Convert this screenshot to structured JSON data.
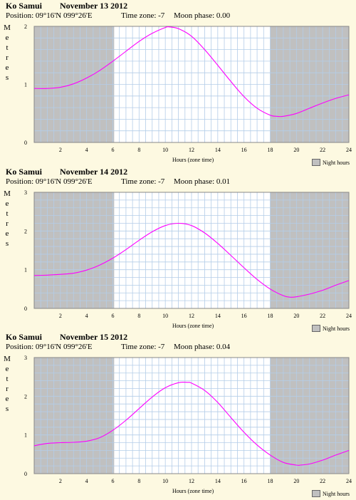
{
  "panels": [
    {
      "location": "Ko Samui",
      "date": "November 13 2012",
      "position": "Position: 09°16'N 099°26'E",
      "timezone": "Time zone: -7",
      "moon": "Moon phase: 0.00",
      "chart_data": {
        "type": "line",
        "ylabel": "Metres",
        "xlabel": "Hours (zone time)",
        "ylim": [
          0,
          2
        ],
        "yticks": [
          0,
          1,
          2
        ],
        "xlim": [
          0,
          24
        ],
        "xticks": [
          2,
          4,
          6,
          8,
          10,
          12,
          14,
          16,
          18,
          20,
          22,
          24
        ],
        "night": [
          [
            0,
            6.1
          ],
          [
            18,
            24
          ]
        ],
        "legend": "Night hours",
        "line_color": "#ff00ff",
        "x": [
          0,
          1,
          2,
          3,
          4,
          5,
          6,
          7,
          8,
          9,
          10,
          10.3,
          11,
          12,
          13,
          14,
          15,
          16,
          17,
          18,
          18.5,
          19,
          20,
          21,
          22,
          23,
          24
        ],
        "y": [
          0.93,
          0.93,
          0.95,
          1.01,
          1.11,
          1.24,
          1.4,
          1.57,
          1.74,
          1.88,
          1.98,
          1.99,
          1.96,
          1.83,
          1.6,
          1.33,
          1.05,
          0.79,
          0.59,
          0.47,
          0.45,
          0.45,
          0.5,
          0.59,
          0.68,
          0.76,
          0.82
        ]
      }
    },
    {
      "location": "Ko Samui",
      "date": "November 14 2012",
      "position": "Position: 09°16'N 099°26'E",
      "timezone": "Time zone: -7",
      "moon": "Moon phase: 0.01",
      "chart_data": {
        "type": "line",
        "ylabel": "Metres",
        "xlabel": "Hours (zone time)",
        "ylim": [
          0,
          3
        ],
        "yticks": [
          0,
          1,
          2,
          3
        ],
        "xlim": [
          0,
          24
        ],
        "xticks": [
          2,
          4,
          6,
          8,
          10,
          12,
          14,
          16,
          18,
          20,
          22,
          24
        ],
        "night": [
          [
            0,
            6.1
          ],
          [
            18,
            24
          ]
        ],
        "legend": "Night hours",
        "line_color": "#ff00ff",
        "x": [
          0,
          1,
          2,
          3,
          4,
          5,
          6,
          7,
          8,
          9,
          10,
          11,
          12,
          13,
          14,
          15,
          16,
          17,
          18,
          19,
          19.5,
          20,
          21,
          22,
          23,
          24
        ],
        "y": [
          0.85,
          0.86,
          0.88,
          0.91,
          0.99,
          1.12,
          1.3,
          1.52,
          1.76,
          1.98,
          2.14,
          2.2,
          2.14,
          1.95,
          1.68,
          1.37,
          1.05,
          0.75,
          0.5,
          0.33,
          0.29,
          0.3,
          0.37,
          0.47,
          0.6,
          0.72
        ]
      }
    },
    {
      "location": "Ko Samui",
      "date": "November 15 2012",
      "position": "Position: 09°16'N 099°26'E",
      "timezone": "Time zone: -7",
      "moon": "Moon phase: 0.04",
      "chart_data": {
        "type": "line",
        "ylabel": "Metres",
        "xlabel": "Hours (zone time)",
        "ylim": [
          0,
          3
        ],
        "yticks": [
          0,
          1,
          2,
          3
        ],
        "xlim": [
          0,
          24
        ],
        "xticks": [
          2,
          4,
          6,
          8,
          10,
          12,
          14,
          16,
          18,
          20,
          22,
          24
        ],
        "night": [
          [
            0,
            6.1
          ],
          [
            18,
            24
          ]
        ],
        "legend": "Night hours",
        "line_color": "#ff00ff",
        "x": [
          0,
          1,
          2,
          3,
          4,
          5,
          6,
          7,
          8,
          9,
          10,
          11,
          11.7,
          12,
          13,
          14,
          15,
          16,
          17,
          18,
          19,
          20,
          20.3,
          21,
          22,
          23,
          24
        ],
        "y": [
          0.72,
          0.78,
          0.8,
          0.81,
          0.84,
          0.93,
          1.12,
          1.38,
          1.68,
          1.98,
          2.22,
          2.35,
          2.36,
          2.34,
          2.15,
          1.84,
          1.45,
          1.07,
          0.74,
          0.48,
          0.29,
          0.22,
          0.22,
          0.25,
          0.35,
          0.48,
          0.6
        ]
      }
    }
  ]
}
